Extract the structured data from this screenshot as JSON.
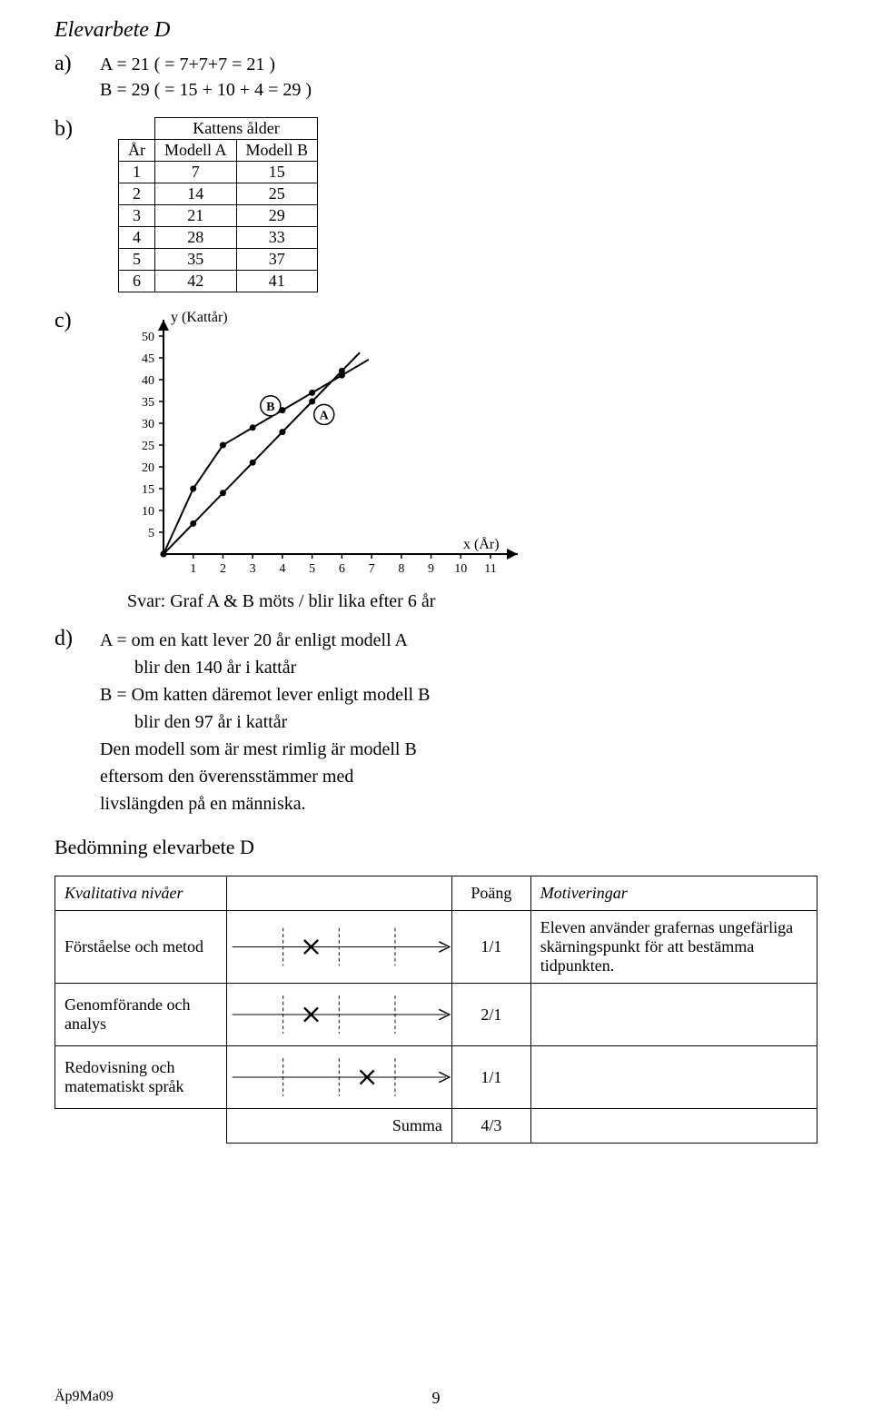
{
  "title": "Elevarbete D",
  "partA": {
    "label": "a)",
    "line1": "A = 21   ( = 7+7+7 = 21 )",
    "line2": "B = 29   ( = 15 + 10 + 4 = 29 )"
  },
  "partB": {
    "label": "b)",
    "superheader": "Kattens  ålder",
    "headers": [
      "År",
      "Modell A",
      "Modell B"
    ],
    "rows": [
      [
        "1",
        "7",
        "15"
      ],
      [
        "2",
        "14",
        "25"
      ],
      [
        "3",
        "21",
        "29"
      ],
      [
        "4",
        "28",
        "33"
      ],
      [
        "5",
        "35",
        "37"
      ],
      [
        "6",
        "42",
        "41"
      ]
    ]
  },
  "partC": {
    "label": "c)",
    "y_axis_label": "y (Kattår)",
    "x_axis_label": "x (År)",
    "y_ticks": [
      5,
      10,
      15,
      20,
      25,
      30,
      35,
      40,
      45,
      50
    ],
    "x_ticks": [
      1,
      2,
      3,
      4,
      5,
      6,
      7,
      8,
      9,
      10,
      11
    ],
    "seriesA_label": "A",
    "seriesB_label": "B",
    "seriesA": [
      [
        0,
        0
      ],
      [
        1,
        7
      ],
      [
        2,
        14
      ],
      [
        3,
        21
      ],
      [
        4,
        28
      ],
      [
        5,
        35
      ],
      [
        6,
        42
      ]
    ],
    "seriesB": [
      [
        0,
        0
      ],
      [
        1,
        15
      ],
      [
        2,
        25
      ],
      [
        3,
        29
      ],
      [
        4,
        33
      ],
      [
        5,
        37
      ],
      [
        6,
        41
      ]
    ],
    "marker_color": "#000000",
    "line_color": "#000000",
    "answer": "Svar:  Graf A & B möts / blir lika efter 6 år"
  },
  "partD": {
    "label": "d)",
    "lines": [
      "A = om en katt lever 20 år enligt modell A",
      "blir den 140 år i kattår",
      "B = Om katten däremot lever enligt modell B",
      "blir den 97 år i kattår",
      "Den modell som är mest rimlig är modell B",
      "eftersom den överensstämmer med",
      "livslängden på en människa."
    ]
  },
  "assessment": {
    "heading": "Bedömning elevarbete D",
    "headers": {
      "kv": "Kvalitativa nivåer",
      "poang": "Poäng",
      "motiv": "Motiveringar"
    },
    "rows": [
      {
        "label": "Förståelse och metod",
        "rubric": {
          "levels": 4,
          "mark_at": 2,
          "arrow": true
        },
        "points": "1/1",
        "motivation": "Eleven använder grafernas ungefärliga skärningspunkt för att bestämma tidpunkten."
      },
      {
        "label": "Genomförande och analys",
        "rubric": {
          "levels": 4,
          "mark_at": 2,
          "arrow": true
        },
        "points": "2/1",
        "motivation": ""
      },
      {
        "label": "Redovisning och matematiskt språk",
        "rubric": {
          "levels": 4,
          "mark_at": 3,
          "arrow": true
        },
        "points": "1/1",
        "motivation": ""
      }
    ],
    "sum_label": "Summa",
    "sum_value": "4/3"
  },
  "footer": {
    "left": "Äp9Ma09",
    "page": "9"
  }
}
